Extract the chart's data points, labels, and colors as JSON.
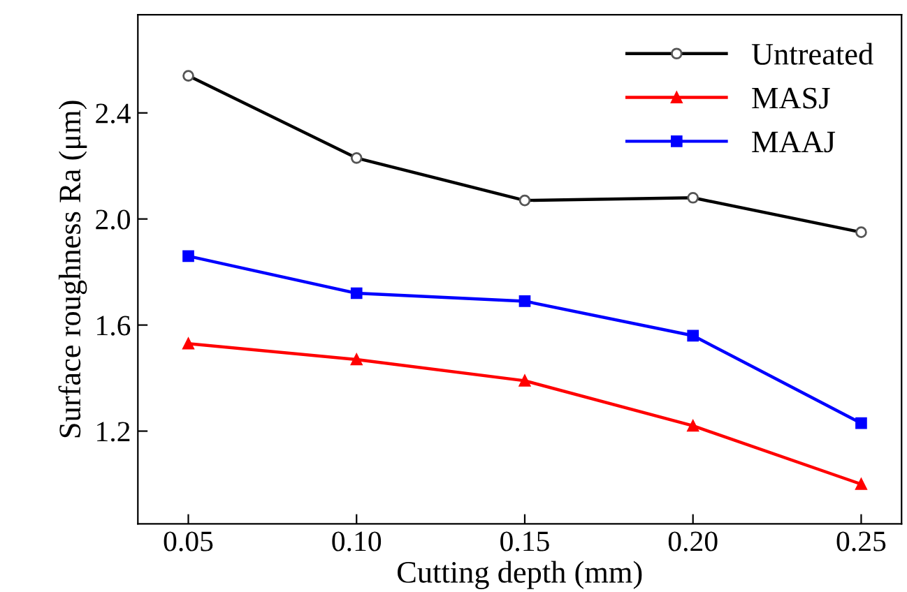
{
  "chart_data": {
    "type": "line",
    "xlabel": "Cutting depth (mm)",
    "ylabel": "Surface roughness Ra (μm)",
    "x": [
      0.05,
      0.1,
      0.15,
      0.2,
      0.25
    ],
    "series": [
      {
        "name": "Untreated",
        "color": "#000000",
        "marker": "circle",
        "values": [
          2.54,
          2.23,
          2.07,
          2.08,
          1.95
        ]
      },
      {
        "name": "MASJ",
        "color": "#ff0000",
        "marker": "triangle",
        "values": [
          1.53,
          1.47,
          1.39,
          1.22,
          1.0
        ]
      },
      {
        "name": "MAAJ",
        "color": "#0000ff",
        "marker": "square",
        "values": [
          1.86,
          1.72,
          1.69,
          1.56,
          1.23
        ]
      }
    ],
    "xlim": [
      0.035,
      0.262
    ],
    "xticks": [
      {
        "value": 0.05,
        "label": "0.05"
      },
      {
        "value": 0.1,
        "label": "0.10"
      },
      {
        "value": 0.15,
        "label": "0.15"
      },
      {
        "value": 0.2,
        "label": "0.20"
      },
      {
        "value": 0.25,
        "label": "0.25"
      }
    ],
    "ylim": [
      0.85,
      2.77
    ],
    "yticks": [
      1.2,
      1.6,
      {
        "value": 2,
        "label": "2.0"
      },
      2.4
    ],
    "grid": false,
    "legend": "top right",
    "line_style": "solid"
  }
}
